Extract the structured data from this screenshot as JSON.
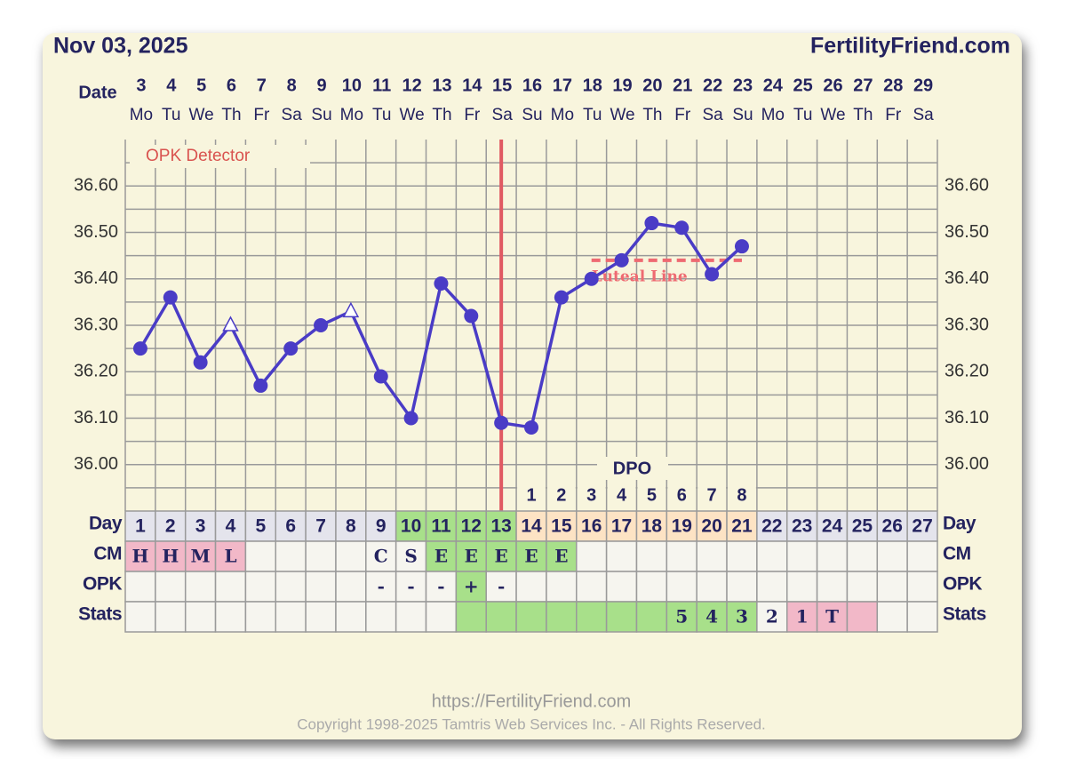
{
  "title": "Nov 03, 2025",
  "site": "FertilityFriend.com",
  "chart_data": {
    "type": "line",
    "x_label": "Date",
    "categories": [
      "3",
      "4",
      "5",
      "6",
      "7",
      "8",
      "9",
      "10",
      "11",
      "12",
      "13",
      "14",
      "15",
      "16",
      "17",
      "18",
      "19",
      "20",
      "21",
      "22",
      "23",
      "24",
      "25",
      "26",
      "27",
      "28",
      "29"
    ],
    "weekdays": [
      "Mo",
      "Tu",
      "We",
      "Th",
      "Fr",
      "Sa",
      "Su",
      "Mo",
      "Tu",
      "We",
      "Th",
      "Fr",
      "Sa",
      "Su",
      "Mo",
      "Tu",
      "We",
      "Th",
      "Fr",
      "Sa",
      "Su",
      "Mo",
      "Tu",
      "We",
      "Th",
      "Fr",
      "Sa"
    ],
    "values": [
      36.25,
      36.36,
      36.22,
      36.3,
      36.17,
      36.25,
      36.3,
      36.33,
      36.19,
      36.1,
      36.39,
      36.32,
      36.09,
      36.08,
      36.36,
      36.4,
      36.44,
      36.52,
      36.51,
      36.41,
      36.47,
      null,
      null,
      null,
      null,
      null,
      null
    ],
    "color": "#4a3cc6",
    "open_markers": [
      3,
      7
    ],
    "ylim": [
      35.9,
      36.7
    ],
    "yticks": [
      {
        "value": 36.0,
        "label": "36.00"
      },
      {
        "value": 36.1,
        "label": "36.10"
      },
      {
        "value": 36.2,
        "label": "36.20"
      },
      {
        "value": 36.3,
        "label": "36.30"
      },
      {
        "value": 36.4,
        "label": "36.40"
      },
      {
        "value": 36.5,
        "label": "36.50"
      },
      {
        "value": 36.6,
        "label": "36.60"
      }
    ],
    "minor_yticks": [
      35.95,
      36.05,
      36.15,
      36.25,
      36.35,
      36.45,
      36.55,
      36.65
    ],
    "grid": true,
    "opk_label": "OPK Detector",
    "dpo_label": "DPO",
    "dpo": [
      null,
      null,
      null,
      null,
      null,
      null,
      null,
      null,
      null,
      null,
      null,
      null,
      null,
      1,
      2,
      3,
      4,
      5,
      6,
      7,
      8,
      null,
      null,
      null,
      null,
      null,
      null
    ],
    "ovulation_color": "#e05a62",
    "coverline": {
      "label": "Luteal Line",
      "value": 36.44,
      "color": "#ee6a72"
    }
  },
  "table": {
    "rows": [
      {
        "label": "Day",
        "cells": [
          1,
          2,
          3,
          4,
          5,
          6,
          7,
          8,
          9,
          10,
          11,
          12,
          13,
          14,
          15,
          16,
          17,
          18,
          19,
          20,
          21,
          22,
          23,
          24,
          25,
          26,
          27
        ],
        "colors": [
          "#e4e4ec",
          "#e4e4ec",
          "#e4e4ec",
          "#e4e4ec",
          "#e4e4ec",
          "#e4e4ec",
          "#e4e4ec",
          "#e4e4ec",
          "#e4e4ec",
          "#a8e08a",
          "#a8e08a",
          "#a8e08a",
          "#a8e08a",
          "#fde3c4",
          "#fde3c4",
          "#fde3c4",
          "#fde3c4",
          "#fde3c4",
          "#fde3c4",
          "#fde3c4",
          "#fde3c4",
          "#e4e4ec",
          "#e4e4ec",
          "#e4e4ec",
          "#e4e4ec",
          "#e4e4ec",
          "#e4e4ec"
        ]
      },
      {
        "label": "CM",
        "cells": [
          "H",
          "H",
          "M",
          "L",
          null,
          null,
          null,
          null,
          "C",
          "S",
          "E",
          "E",
          "E",
          "E",
          "E",
          null,
          null,
          null,
          null,
          null,
          null,
          null,
          null,
          null,
          null,
          null,
          null
        ],
        "colors": [
          "#f2b8c8",
          "#f2b8c8",
          "#f2b8c8",
          "#f2b8c8",
          null,
          null,
          null,
          null,
          null,
          null,
          "#a8e08a",
          "#a8e08a",
          "#a8e08a",
          "#a8e08a",
          "#a8e08a",
          null,
          null,
          null,
          null,
          null,
          null,
          null,
          null,
          null,
          null,
          null,
          null
        ]
      },
      {
        "label": "OPK",
        "cells": [
          null,
          null,
          null,
          null,
          null,
          null,
          null,
          null,
          "-",
          "-",
          "-",
          "+",
          "-",
          null,
          null,
          null,
          null,
          null,
          null,
          null,
          null,
          null,
          null,
          null,
          null,
          null,
          null
        ],
        "colors": [
          null,
          null,
          null,
          null,
          null,
          null,
          null,
          null,
          null,
          null,
          null,
          "#a8e08a",
          null,
          null,
          null,
          null,
          null,
          null,
          null,
          null,
          null,
          null,
          null,
          null,
          null,
          null,
          null
        ]
      },
      {
        "label": "Stats",
        "cells": [
          null,
          null,
          null,
          null,
          null,
          null,
          null,
          null,
          null,
          null,
          null,
          null,
          null,
          null,
          null,
          null,
          null,
          null,
          "5",
          "4",
          "3",
          "2",
          "1",
          "T",
          null,
          null,
          null
        ],
        "colors": [
          null,
          null,
          null,
          null,
          null,
          null,
          null,
          null,
          null,
          null,
          null,
          "#a8e08a",
          "#a8e08a",
          "#a8e08a",
          "#a8e08a",
          "#a8e08a",
          "#a8e08a",
          "#a8e08a",
          "#a8e08a",
          "#a8e08a",
          "#a8e08a",
          null,
          "#f2b8c8",
          "#f2b8c8",
          "#f2b8c8",
          null,
          null
        ]
      }
    ]
  },
  "footer": {
    "url": "https://FertilityFriend.com",
    "copyright": "Copyright 1998-2025 Tamtris Web Services Inc. - All Rights Reserved."
  }
}
